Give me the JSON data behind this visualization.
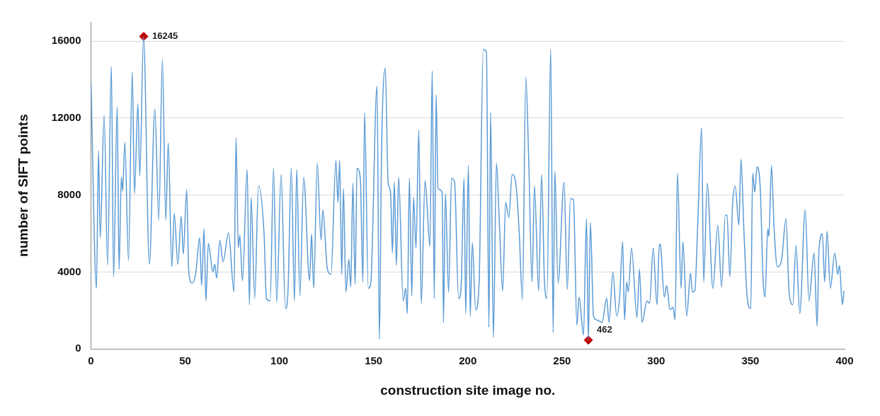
{
  "chart_data": {
    "type": "line",
    "xlabel": "construction site image no.",
    "ylabel": "number of SIFT points",
    "xlim": [
      0,
      400
    ],
    "xticks": [
      0,
      50,
      100,
      150,
      200,
      250,
      300,
      350,
      400
    ],
    "ylim": [
      0,
      17000
    ],
    "yticks": [
      0,
      4000,
      8000,
      12000,
      16000
    ],
    "grid": "y",
    "legend": false,
    "marker": "none",
    "line_style": "solid",
    "series": [
      {
        "type": "line",
        "color": "#5b9bd5",
        "x": [
          0,
          2.9,
          4,
          4.9,
          7,
          8.8,
          10.8,
          12,
          13.9,
          14.9,
          16.1,
          16.8,
          18,
          19.9,
          21.9,
          23.1,
          24.9,
          25.9,
          27.9,
          31,
          33.9,
          36,
          37.9,
          39.7,
          41,
          42.9,
          44.2,
          46.1,
          47.9,
          49,
          50.8,
          51.9,
          53.7,
          55.6,
          57.7,
          58.7,
          60,
          61,
          62.3,
          64.7,
          65.7,
          66.7,
          68.4,
          70.1,
          73,
          75.9,
          77,
          78.2,
          79,
          80.4,
          82.9,
          84.1,
          85,
          86.9,
          88.9,
          91.9,
          93.1,
          95.1,
          96.9,
          98.6,
          100.9,
          103.2,
          104.6,
          106.3,
          108,
          109.2,
          110.9,
          112.9,
          116,
          117.1,
          118.2,
          120.1,
          122.1,
          123.1,
          125.4,
          127.4,
          130,
          131.1,
          132,
          133.1,
          134,
          135.3,
          136.9,
          137.9,
          139,
          140.2,
          141.2,
          143,
          144.3,
          145.2,
          147.2,
          148.5,
          151.8,
          153.1,
          154.2,
          156.2,
          157.7,
          159,
          160,
          161,
          162.1,
          163.3,
          165.7,
          167,
          167.9,
          169,
          170.3,
          171.2,
          172.5,
          174,
          175.3,
          177.3,
          178.2,
          179.9,
          181.1,
          182.2,
          183.2,
          184.2,
          186.4,
          187.1,
          188.1,
          189.8,
          191.4,
          193,
          195.1,
          196.4,
          198,
          198.9,
          200.3,
          201.3,
          202.4,
          204.2,
          206,
          208.2,
          209.9,
          211.2,
          212.1,
          213.6,
          215.2,
          216.8,
          218.5,
          220.1,
          221.8,
          223.5,
          225.7,
          227.3,
          229,
          230.8,
          232.3,
          234.1,
          235.4,
          237.6,
          239.2,
          240.7,
          242,
          244,
          245.3,
          246.2,
          247.9,
          251.1,
          252.8,
          254.5,
          256.1,
          257.9,
          259.1,
          261.4,
          263,
          264,
          265.1,
          266.7,
          268.4,
          271.3,
          273.7,
          275,
          277,
          279,
          280.6,
          282.2,
          283.2,
          284.3,
          285.2,
          286.9,
          289.8,
          291.1,
          292.5,
          295.1,
          296.5,
          298.4,
          300.4,
          301.7,
          302.3,
          304.3,
          305.6,
          307.3,
          308.9,
          310,
          311.3,
          313.2,
          314.2,
          316.2,
          318.2,
          319.2,
          320.5,
          322.1,
          324.1,
          325.2,
          327.1,
          330.1,
          332.7,
          334.7,
          336.7,
          337.6,
          339.1,
          340.6,
          341.9,
          343.9,
          345,
          346.6,
          348.3,
          350.2,
          351.2,
          352.3,
          353.5,
          355.2,
          356.8,
          357.8,
          359.2,
          359.8,
          361.2,
          362.5,
          364.3,
          366.5,
          368.9,
          370.5,
          372.5,
          374.2,
          376.2,
          379.1,
          381.1,
          383.8,
          385.4,
          386.4,
          388.2,
          389.4,
          390.7,
          392.4,
          394.8,
          396.4,
          397.3,
          398.8,
          399.7
        ],
        "values": [
          13860,
          3150,
          10300,
          5780,
          12150,
          4340,
          14690,
          3750,
          12600,
          4140,
          8940,
          8210,
          10750,
          4600,
          14390,
          8080,
          12750,
          9000,
          16250,
          4400,
          12480,
          6700,
          15050,
          6700,
          10710,
          4270,
          7040,
          4400,
          6900,
          4930,
          8280,
          4010,
          3420,
          3940,
          5780,
          3290,
          6240,
          2500,
          5490,
          4010,
          4400,
          3680,
          5650,
          4530,
          6040,
          2960,
          10970,
          5260,
          5910,
          3550,
          9330,
          2300,
          7880,
          2630,
          8480,
          5910,
          2630,
          2500,
          9400,
          2430,
          9070,
          2100,
          3090,
          9400,
          2500,
          9330,
          2760,
          8930,
          3550,
          5980,
          3150,
          9660,
          5650,
          7230,
          4200,
          3880,
          9790,
          7620,
          9790,
          3880,
          8340,
          2960,
          4660,
          3220,
          8610,
          3350,
          9400,
          8800,
          3480,
          12290,
          3150,
          3420,
          13670,
          500,
          10120,
          14590,
          8670,
          8150,
          4990,
          8670,
          4340,
          8930,
          2500,
          3150,
          1840,
          8870,
          2760,
          7880,
          5260,
          11370,
          2370,
          8740,
          7750,
          5320,
          14450,
          2630,
          13210,
          8340,
          8150,
          1380,
          8080,
          2960,
          8870,
          8670,
          2630,
          3090,
          8870,
          1840,
          9530,
          1710,
          5520,
          2040,
          3420,
          15570,
          15440,
          1120,
          12290,
          590,
          9660,
          6440,
          3020,
          7620,
          6830,
          9070,
          8410,
          6040,
          2560,
          14130,
          9990,
          3480,
          8480,
          3020,
          9070,
          3480,
          2630,
          15570,
          850,
          9260,
          3420,
          8670,
          3090,
          7820,
          7750,
          1250,
          2690,
          720,
          6770,
          460,
          6570,
          1710,
          1510,
          1380,
          2630,
          1380,
          4010,
          1710,
          2690,
          5580,
          1510,
          3480,
          2960,
          5260,
          1640,
          4140,
          1380,
          2500,
          2370,
          5260,
          2300,
          5450,
          5390,
          2690,
          3290,
          2040,
          2170,
          1510,
          9140,
          3150,
          5580,
          1710,
          3940,
          2960,
          3020,
          6570,
          11500,
          3480,
          8610,
          3150,
          6440,
          3220,
          6960,
          6960,
          3750,
          7620,
          8480,
          6440,
          9860,
          6040,
          2690,
          2100,
          9140,
          8150,
          9460,
          8410,
          3480,
          2690,
          6240,
          5850,
          9530,
          6440,
          4270,
          4600,
          6770,
          3020,
          2300,
          5390,
          1840,
          7230,
          2500,
          4990,
          1180,
          5120,
          5980,
          3480,
          6110,
          3150,
          4990,
          3880,
          4340,
          2300,
          3020
        ]
      },
      {
        "type": "scatter",
        "color": "#c00000",
        "marker": "diamond",
        "x": [
          28,
          264
        ],
        "values": [
          16245,
          462
        ],
        "value_labels": [
          "16245",
          "462"
        ]
      }
    ]
  }
}
